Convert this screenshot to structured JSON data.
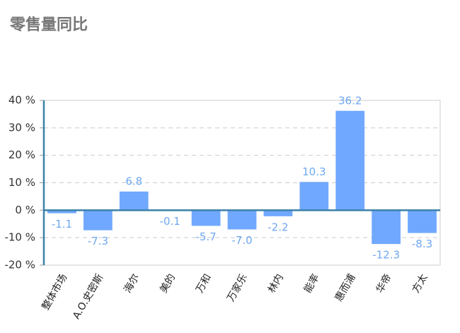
{
  "chart_data": {
    "type": "bar",
    "title": "零售量同比",
    "categories": [
      "整体市场",
      "A.O.史密斯",
      "海尔",
      "美的",
      "万和",
      "万家乐",
      "林内",
      "能率",
      "惠而浦",
      "华帝",
      "方太"
    ],
    "values": [
      -1.1,
      -7.3,
      6.8,
      -0.1,
      -5.7,
      -7.0,
      -2.2,
      10.3,
      36.2,
      -12.3,
      -8.3
    ],
    "value_labels": [
      "-1.1",
      "-7.3",
      "6.8",
      "-0.1",
      "-5.7",
      "-7.0",
      "-2.2",
      "10.3",
      "36.2",
      "-12.3",
      "-8.3"
    ],
    "color": "#70a8ff",
    "ylim": [
      -20,
      40
    ],
    "yticks": [
      {
        "value": -20,
        "label": "-20 %"
      },
      {
        "value": -10,
        "label": "-10 %"
      },
      {
        "value": 0,
        "label": "0 %"
      },
      {
        "value": 10,
        "label": "10 %"
      },
      {
        "value": 20,
        "label": "20 %"
      },
      {
        "value": 30,
        "label": "30 %"
      },
      {
        "value": 40,
        "label": "40 %"
      }
    ],
    "grid": true
  }
}
